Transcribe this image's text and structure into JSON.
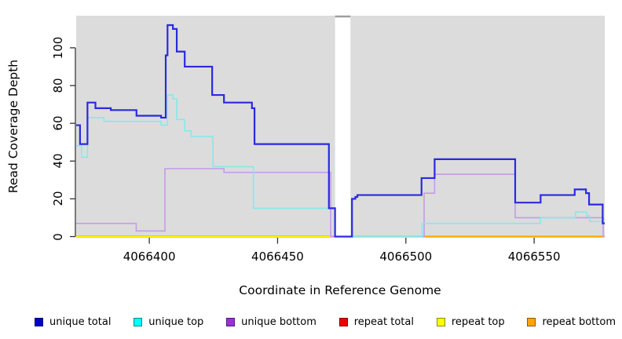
{
  "y_axis": {
    "title": "Read Coverage Depth",
    "tick_labels": [
      "0",
      "20",
      "40",
      "60",
      "80",
      "100"
    ],
    "tick_values": [
      0,
      20,
      40,
      60,
      80,
      100
    ]
  },
  "x_axis": {
    "title": "Coordinate in Reference Genome",
    "tick_labels": [
      "4066400",
      "4066450",
      "4066500",
      "4066550"
    ],
    "tick_values": [
      4066400,
      4066450,
      4066500,
      4066550
    ]
  },
  "legend": [
    {
      "label": "unique total",
      "color": "#0000CC"
    },
    {
      "label": "unique top",
      "color": "#00FFFF"
    },
    {
      "label": "unique bottom",
      "color": "#9B30D6"
    },
    {
      "label": "repeat total",
      "color": "#EE0000"
    },
    {
      "label": "repeat top",
      "color": "#FFFF00"
    },
    {
      "label": "repeat bottom",
      "color": "#FFA500"
    }
  ],
  "chart_data": {
    "type": "line",
    "subtype": "step-coverage",
    "x_domain": [
      4066371.5,
      4066577.5
    ],
    "y_domain": [
      0,
      117
    ],
    "plot_bg": "#DCDCDC",
    "grid": false,
    "gap": {
      "from": 4066472.4,
      "to": 4066478.4,
      "cap_color": "#9E9E9E"
    },
    "zero_line_segments": [
      {
        "from": 4066371.5,
        "to": 4066472.4,
        "color": "#FFA500"
      },
      {
        "from": 4066478.4,
        "to": 4066507.1,
        "color": "#8FCF8F"
      },
      {
        "from": 4066507.1,
        "to": 4066577.5,
        "color": "#FFA500"
      }
    ],
    "series": [
      {
        "name": "repeat total",
        "color": "#DD0000",
        "width": 1.6,
        "points": [
          [
            4066371.5,
            0
          ],
          [
            4066472.4,
            0
          ]
        ]
      },
      {
        "name": "repeat top",
        "color": "#FFFF00",
        "width": 1.6,
        "points": [
          [
            4066371.5,
            0
          ],
          [
            4066472.4,
            0
          ]
        ]
      },
      {
        "name": "unique bottom",
        "color": "#C49CE6",
        "width": 1.6,
        "points": [
          [
            4066371.5,
            7
          ],
          [
            4066394.9,
            3
          ],
          [
            4066406.1,
            36
          ],
          [
            4066429.1,
            34
          ],
          [
            4066470.7,
            0
          ],
          [
            4066507.1,
            23
          ],
          [
            4066511.2,
            33
          ],
          [
            4066542.6,
            10
          ],
          [
            4066576.9,
            0
          ],
          [
            4066577.5,
            0
          ]
        ]
      },
      {
        "name": "unique top",
        "color": "#87E8EA",
        "width": 1.6,
        "points": [
          [
            4066371.5,
            48
          ],
          [
            4066373.6,
            42
          ],
          [
            4066375.9,
            63
          ],
          [
            4066382.3,
            61
          ],
          [
            4066404.6,
            59
          ],
          [
            4066407.1,
            75
          ],
          [
            4066409.2,
            73
          ],
          [
            4066410.7,
            62
          ],
          [
            4066413.8,
            56
          ],
          [
            4066416.3,
            53
          ],
          [
            4066424.8,
            37
          ],
          [
            4066440.6,
            15
          ],
          [
            4066472.4,
            0
          ],
          [
            4066506.3,
            7
          ],
          [
            4066552.4,
            10
          ],
          [
            4066566.1,
            13
          ],
          [
            4066570.5,
            11
          ],
          [
            4066571.6,
            8
          ],
          [
            4066576.7,
            9
          ],
          [
            4066577.5,
            9
          ]
        ]
      },
      {
        "name": "unique total",
        "color": "#2A2AE0",
        "width": 2.2,
        "points": [
          [
            4066371.5,
            59
          ],
          [
            4066373,
            49
          ],
          [
            4066375.9,
            71
          ],
          [
            4066379,
            68
          ],
          [
            4066385,
            67
          ],
          [
            4066395,
            64
          ],
          [
            4066404.6,
            63
          ],
          [
            4066406.4,
            96
          ],
          [
            4066407.1,
            112
          ],
          [
            4066409.2,
            110
          ],
          [
            4066410.7,
            98
          ],
          [
            4066413.8,
            90
          ],
          [
            4066424.5,
            75
          ],
          [
            4066429.1,
            71
          ],
          [
            4066440,
            68
          ],
          [
            4066441,
            49
          ],
          [
            4066470,
            15
          ],
          [
            4066472.4,
            0
          ],
          [
            4066479,
            20
          ],
          [
            4066480.3,
            21
          ],
          [
            4066481.1,
            22
          ],
          [
            4066506.1,
            31
          ],
          [
            4066511.2,
            41
          ],
          [
            4066542.6,
            18
          ],
          [
            4066552.5,
            22
          ],
          [
            4066565.8,
            25
          ],
          [
            4066570.2,
            23
          ],
          [
            4066571.4,
            17
          ],
          [
            4066576.7,
            7
          ],
          [
            4066577.5,
            7
          ]
        ]
      }
    ]
  }
}
